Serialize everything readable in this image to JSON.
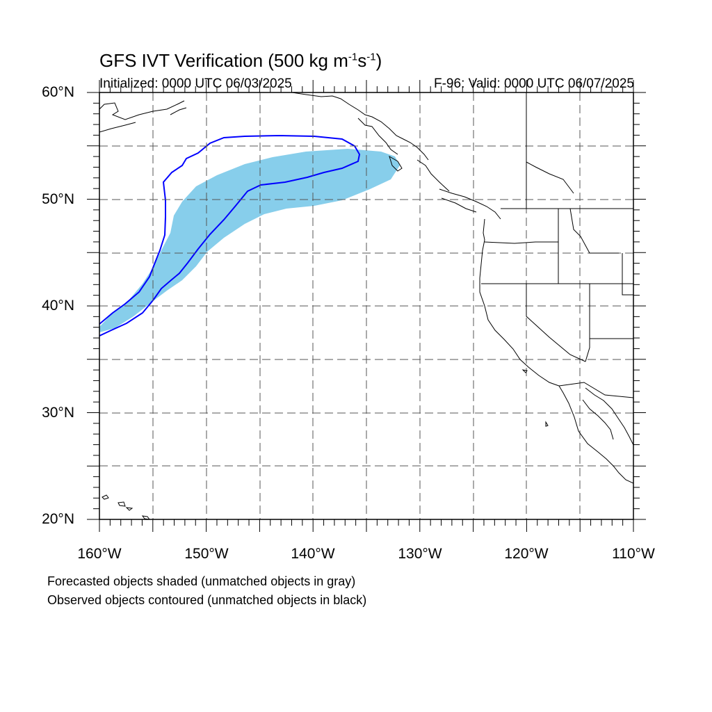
{
  "title": {
    "main": "GFS IVT Verification (500 kg m",
    "exp1": "-1",
    "mid": "s",
    "exp2": "-1",
    "close": ")"
  },
  "initialized": "Initialized: 0000 UTC 06/03/2025",
  "valid": "F-96: Valid: 0000 UTC 06/07/2025",
  "map": {
    "lon_range": [
      -160,
      -110
    ],
    "lat_range": [
      20,
      60
    ],
    "lat_labels": [
      "60°N",
      "50°N",
      "40°N",
      "30°N",
      "20°N"
    ],
    "lon_labels": [
      "160°W",
      "150°W",
      "140°W",
      "130°W",
      "120°W",
      "110°W"
    ],
    "gridlines": "dashed every 5°",
    "forecast_fill_color": "#87ceeb",
    "observed_contour_color": "#0000ff"
  },
  "footnotes": [
    "Forecasted objects shaded (unmatched objects in gray)",
    "Observed objects contoured (unmatched objects in black)"
  ]
}
